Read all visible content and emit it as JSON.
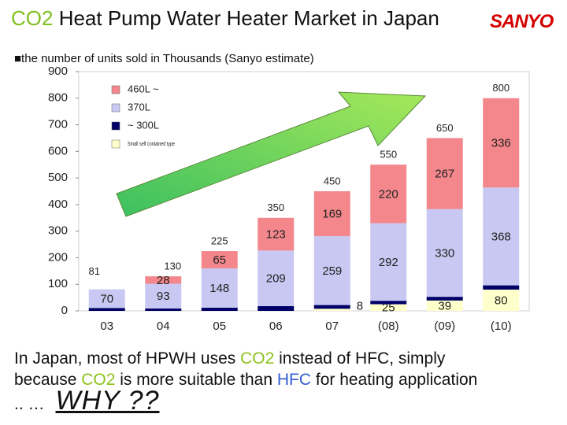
{
  "header": {
    "title_co2": "CO2",
    "title_rest": " Heat Pump Water Heater Market in Japan",
    "logo": "SANYO"
  },
  "chart_data": {
    "type": "bar",
    "subtitle": "■the number of units sold in Thousands (Sanyo estimate)",
    "stacked": true,
    "categories": [
      "03",
      "04",
      "05",
      "06",
      "07",
      "(08)",
      "(09)",
      "(10)"
    ],
    "series": [
      {
        "name": "Small self contained type",
        "color": "#ffffcc",
        "labels": true,
        "values": [
          0,
          0,
          0,
          0,
          8,
          25,
          39,
          80
        ]
      },
      {
        "name": "~ 300L",
        "color": "#000066",
        "labels": false,
        "values": [
          11,
          9,
          12,
          18,
          14,
          13,
          14,
          16
        ]
      },
      {
        "name": "370L",
        "color": "#c8c8f2",
        "labels": true,
        "values": [
          70,
          93,
          148,
          209,
          259,
          292,
          330,
          368
        ]
      },
      {
        "name": "460L ~",
        "color": "#f4878b",
        "labels": true,
        "values": [
          0,
          28,
          65,
          123,
          169,
          220,
          267,
          336
        ]
      }
    ],
    "totals": [
      81,
      130,
      225,
      350,
      450,
      550,
      650,
      800
    ],
    "ylim": [
      0,
      900
    ],
    "yticks": [
      0,
      100,
      200,
      300,
      400,
      500,
      600,
      700,
      800,
      900
    ]
  },
  "footer": {
    "line1": [
      "In Japan, most of HPWH uses ",
      "CO2",
      " instead of HFC, simply"
    ],
    "line2": [
      "because ",
      "CO2",
      " is more suitable than ",
      "HFC",
      " for heating application"
    ],
    "line3": [
      ".. …",
      "WHY ??"
    ]
  }
}
